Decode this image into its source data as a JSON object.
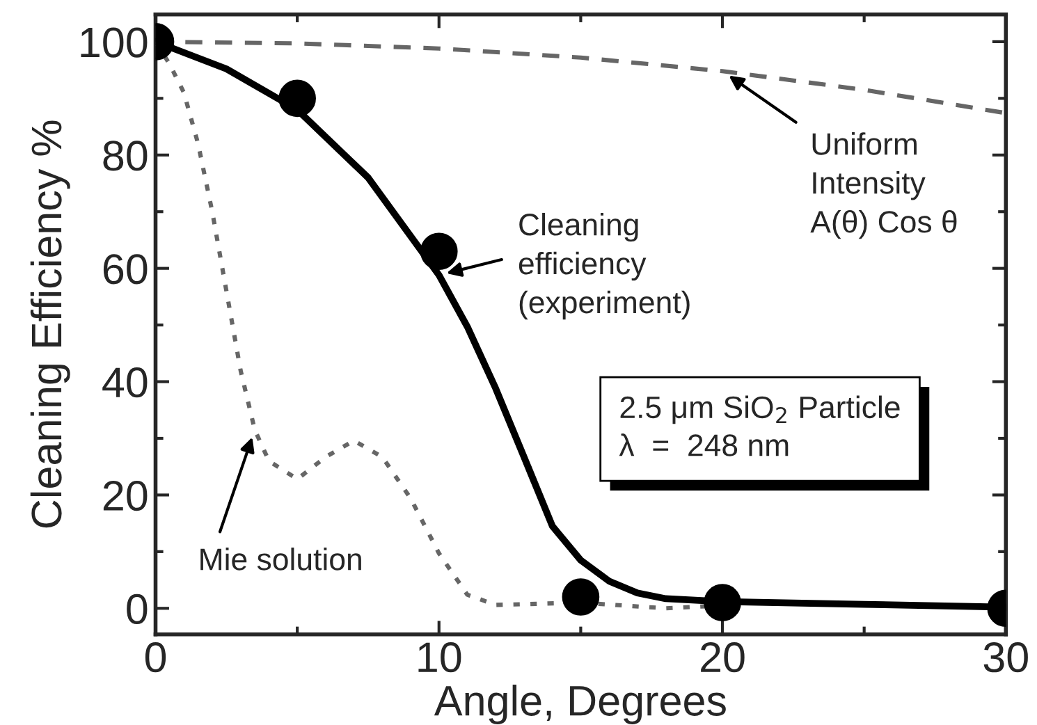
{
  "chart_data": {
    "type": "line",
    "xlabel": "Angle, Degrees",
    "ylabel": "Cleaning Efficiency %",
    "xlim": [
      0,
      30
    ],
    "ylim": [
      -4.6,
      104.8
    ],
    "xticks": [
      0,
      10,
      20,
      30
    ],
    "yticks": [
      0,
      20,
      40,
      60,
      80,
      100
    ],
    "grid": false,
    "legend": false,
    "series": [
      {
        "color": "#666666",
        "line_style": "dashed",
        "x": [
          0,
          5,
          10,
          15,
          20,
          25,
          30
        ],
        "values": [
          100,
          99.7,
          98.8,
          97.2,
          94.8,
          91.5,
          87.4
        ]
      },
      {
        "color": "#666666",
        "line_style": "dotted",
        "x": [
          0,
          0.5,
          1,
          1.5,
          2,
          2.5,
          3,
          3.5,
          4,
          5,
          6,
          7,
          8,
          9,
          10,
          11,
          12,
          15,
          18,
          20
        ],
        "values": [
          100,
          96,
          91,
          82,
          70,
          56,
          42,
          31.5,
          26,
          22.8,
          26.7,
          29.6,
          26.7,
          19.4,
          9.7,
          2.4,
          0.6,
          1,
          0,
          0.5
        ]
      },
      {
        "color": "#000000",
        "line_style": "solid",
        "x": [
          0,
          2.5,
          5,
          7.5,
          10,
          11,
          12,
          13,
          14,
          15,
          16,
          17,
          18,
          20,
          25,
          30
        ],
        "values": [
          100,
          95.2,
          88,
          76,
          58.8,
          49.7,
          38.8,
          26.7,
          14.5,
          8.5,
          4.8,
          2.7,
          1.7,
          1.2,
          0.7,
          0.2
        ]
      },
      {
        "type": "scatter",
        "color": "#000000",
        "marker": "circle",
        "x": [
          0,
          5,
          10,
          15,
          20,
          30
        ],
        "values": [
          100,
          90,
          63,
          2,
          1,
          0
        ]
      }
    ],
    "annotations": [
      {
        "text": "Uniform\nIntensity\nA(θ) Cos θ",
        "x": 20,
        "y": 94.8
      },
      {
        "text": "Cleaning\nefficiency\n(experiment)",
        "x": 10,
        "y": 58.8
      },
      {
        "text": "Mie solution",
        "x": 3.5,
        "y": 31.5
      },
      "2.5 μm SiO$_{2}$ Particle\nλ  =  248 nm"
    ]
  }
}
